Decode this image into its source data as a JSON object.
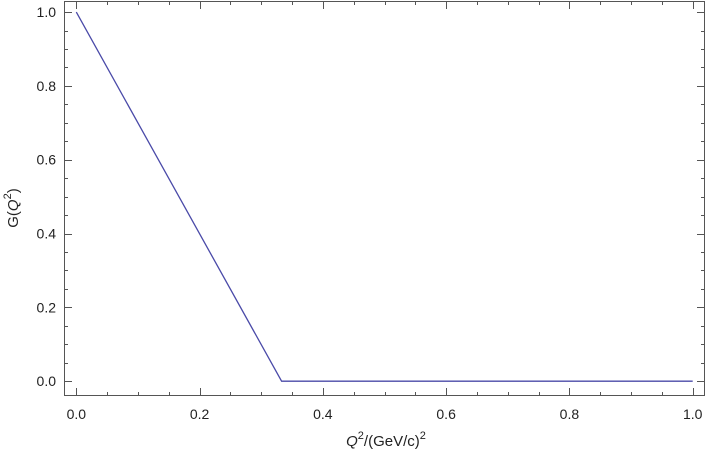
{
  "chart_data": {
    "type": "line",
    "title": "",
    "xlabel": {
      "base": "Q",
      "sup": "2",
      "rest": "/(GeV/c)",
      "sup2": "2"
    },
    "ylabel": {
      "pre": "G(",
      "base": "Q",
      "sup": "2",
      "post": ")"
    },
    "xlim": [
      -0.02,
      1.02
    ],
    "ylim": [
      -0.04,
      1.03
    ],
    "xticks": [
      0.0,
      0.2,
      0.4,
      0.6,
      0.8,
      1.0
    ],
    "xtick_labels": [
      "0.0",
      "0.2",
      "0.4",
      "0.6",
      "0.8",
      "1.0"
    ],
    "yticks": [
      0.0,
      0.2,
      0.4,
      0.6,
      0.8,
      1.0
    ],
    "ytick_labels": [
      "0.0",
      "0.2",
      "0.4",
      "0.6",
      "0.8",
      "1.0"
    ],
    "x_minor_step": 0.05,
    "y_minor_step": 0.05,
    "grid": false,
    "series": [
      {
        "color": "#4a4aa8",
        "x": [
          0.0,
          0.333,
          1.0
        ],
        "y": [
          1.0,
          0.0,
          0.0
        ]
      }
    ]
  }
}
